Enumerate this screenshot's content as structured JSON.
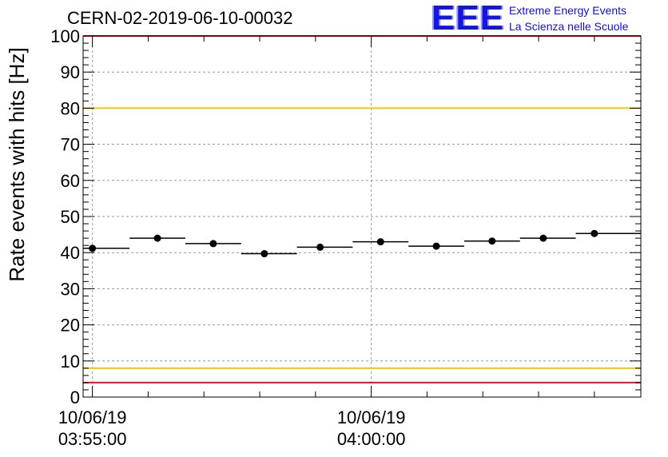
{
  "header": {
    "title": "CERN-02-2019-06-10-00032"
  },
  "logo": {
    "mark": "EEE",
    "line1": "Extreme Energy Events",
    "line2": "La Scienza nelle Scuole",
    "color": "#1010d0"
  },
  "chart_data": {
    "type": "scatter",
    "title": "CERN-02-2019-06-10-00032",
    "xlabel": "",
    "ylabel": "Rate events with hits [Hz]",
    "ylim": [
      0,
      100
    ],
    "y_ticks": [
      0,
      10,
      20,
      30,
      40,
      50,
      60,
      70,
      80,
      90,
      100
    ],
    "x_axis_type": "time",
    "xlim": [
      "2019-06-10 03:54:50",
      "2019-06-10 04:04:50"
    ],
    "x_tick_labels": [
      {
        "time": "2019-06-10 03:55:00",
        "date": "10/06/19",
        "clock": "03:55:00"
      },
      {
        "time": "2019-06-10 04:00:00",
        "date": "10/06/19",
        "clock": "04:00:00"
      }
    ],
    "x_minor_ticks": [
      "2019-06-10 03:56:00",
      "2019-06-10 03:57:00",
      "2019-06-10 03:58:00",
      "2019-06-10 03:59:00",
      "2019-06-10 04:01:00",
      "2019-06-10 04:02:00",
      "2019-06-10 04:03:00",
      "2019-06-10 04:04:00"
    ],
    "grid": true,
    "series": [
      {
        "marker": "circle",
        "color": "#000000",
        "points": [
          {
            "x": "2019-06-10 03:55:00",
            "x_start": "2019-06-10 03:54:50",
            "x_end": "2019-06-10 03:55:40",
            "y": 41.2
          },
          {
            "x": "2019-06-10 03:56:10",
            "x_start": "2019-06-10 03:55:40",
            "x_end": "2019-06-10 03:56:40",
            "y": 44.0
          },
          {
            "x": "2019-06-10 03:57:10",
            "x_start": "2019-06-10 03:56:40",
            "x_end": "2019-06-10 03:57:40",
            "y": 42.5
          },
          {
            "x": "2019-06-10 03:58:05",
            "x_start": "2019-06-10 03:57:40",
            "x_end": "2019-06-10 03:58:40",
            "y": 39.7
          },
          {
            "x": "2019-06-10 03:59:05",
            "x_start": "2019-06-10 03:58:40",
            "x_end": "2019-06-10 03:59:40",
            "y": 41.5
          },
          {
            "x": "2019-06-10 04:00:10",
            "x_start": "2019-06-10 03:59:40",
            "x_end": "2019-06-10 04:00:40",
            "y": 43.0
          },
          {
            "x": "2019-06-10 04:01:10",
            "x_start": "2019-06-10 04:00:40",
            "x_end": "2019-06-10 04:01:40",
            "y": 41.8
          },
          {
            "x": "2019-06-10 04:02:10",
            "x_start": "2019-06-10 04:01:40",
            "x_end": "2019-06-10 04:02:40",
            "y": 43.2
          },
          {
            "x": "2019-06-10 04:03:05",
            "x_start": "2019-06-10 04:02:40",
            "x_end": "2019-06-10 04:03:40",
            "y": 44.0
          },
          {
            "x": "2019-06-10 04:04:00",
            "x_start": "2019-06-10 04:03:40",
            "x_end": "2019-06-10 04:04:50",
            "y": 45.3
          }
        ]
      }
    ],
    "reference_lines": [
      {
        "y": 100,
        "color": "#e8141c"
      },
      {
        "y": 80,
        "color": "#f2c80f"
      },
      {
        "y": 8,
        "color": "#f2c80f"
      },
      {
        "y": 4,
        "color": "#e8141c"
      }
    ]
  }
}
